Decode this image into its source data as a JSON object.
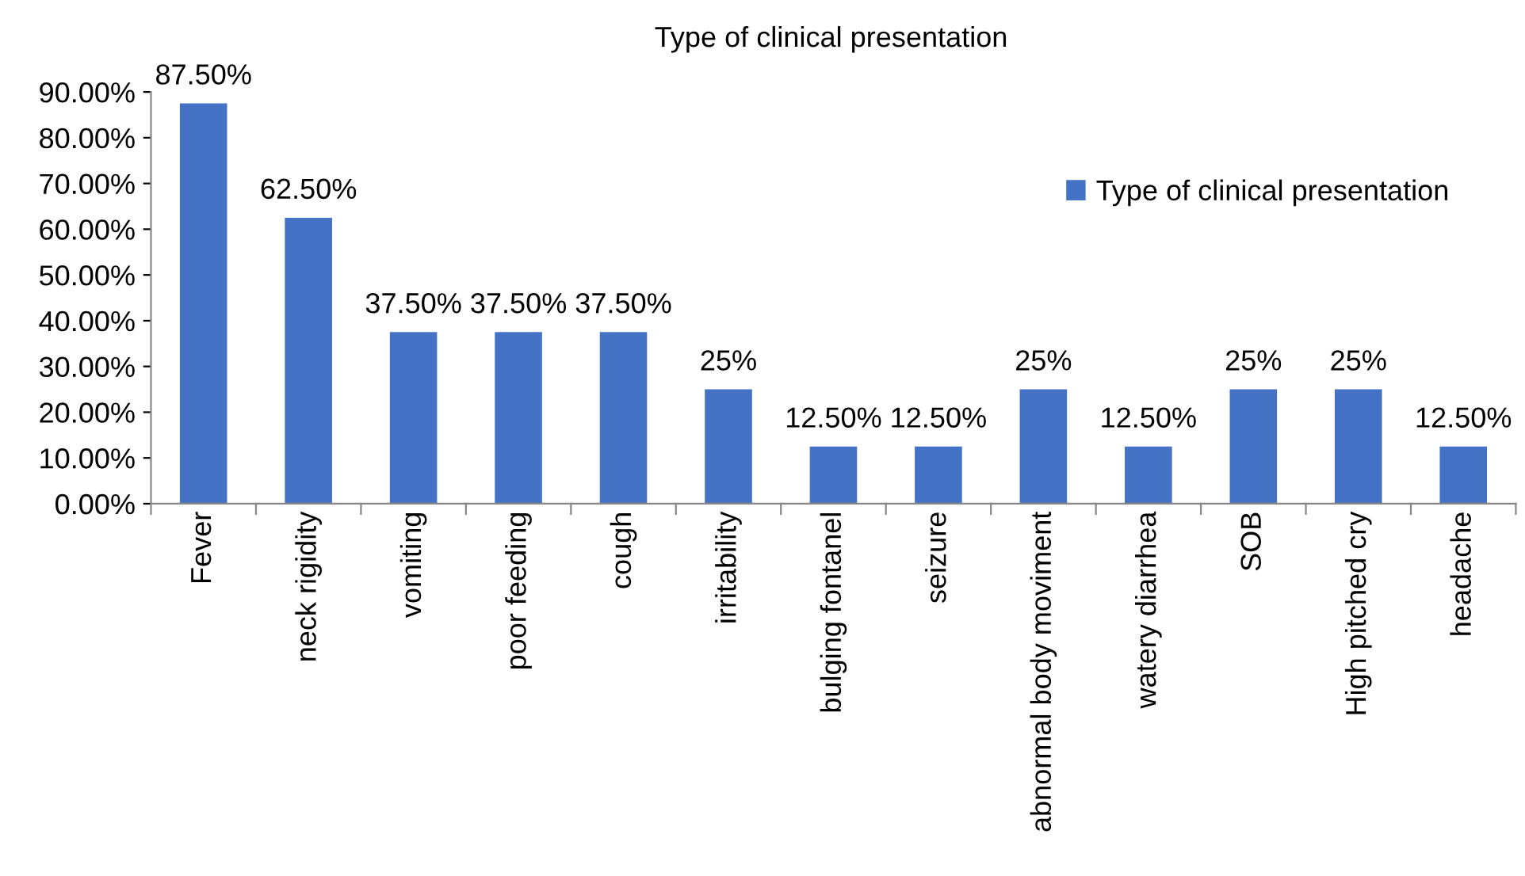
{
  "chart_data": {
    "type": "bar",
    "title": "Type of clinical presentation",
    "categories": [
      "Fever",
      "neck rigidity",
      "vomiting",
      "poor feeding",
      "cough",
      "irritability",
      "bulging fontanel",
      "seizure",
      "abnormal body moviment",
      "watery diarrhea",
      "SOB",
      "High pitched cry",
      "headache"
    ],
    "series": [
      {
        "name": "Type of clinical presentation",
        "color": "#4472c4",
        "values": [
          87.5,
          62.5,
          37.5,
          37.5,
          37.5,
          25,
          12.5,
          12.5,
          25,
          12.5,
          25,
          25,
          12.5
        ],
        "value_labels": [
          "87.50%",
          "62.50%",
          "37.50%",
          "37.50%",
          "37.50%",
          "25%",
          "12.50%",
          "12.50%",
          "25%",
          "12.50%",
          "25%",
          "25%",
          "12.50%"
        ]
      }
    ],
    "ylim": [
      0,
      90
    ],
    "yticks": [
      {
        "value": 0,
        "label": "0.00%"
      },
      {
        "value": 10,
        "label": "10.00%"
      },
      {
        "value": 20,
        "label": "20.00%"
      },
      {
        "value": 30,
        "label": "30.00%"
      },
      {
        "value": 40,
        "label": "40.00%"
      },
      {
        "value": 50,
        "label": "50.00%"
      },
      {
        "value": 60,
        "label": "60.00%"
      },
      {
        "value": 70,
        "label": "70.00%"
      },
      {
        "value": 80,
        "label": "80.00%"
      },
      {
        "value": 90,
        "label": "90.00%"
      }
    ],
    "grid": false,
    "legend": "top right"
  }
}
